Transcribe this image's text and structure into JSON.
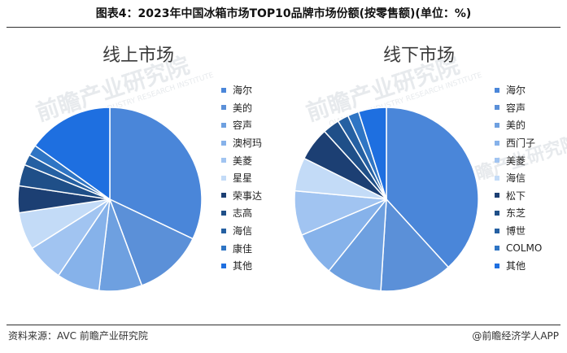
{
  "title": "图表4：2023年中国冰箱市场TOP10品牌市场份额(按零售额)(单位：%)",
  "source": "资料来源：AVC 前瞻产业研究院",
  "credit": "@前瞻经济学人APP",
  "watermark": {
    "main": "前瞻产业研究院",
    "sub": "QIANZHAN INDUSTRY RESEARCH INSTITUTE"
  },
  "chart_data": [
    {
      "type": "pie",
      "title": "线上市场",
      "labels": [
        "海尔",
        "美的",
        "容声",
        "澳柯玛",
        "美菱",
        "星星",
        "荣事达",
        "志高",
        "海信",
        "康佳",
        "其他"
      ],
      "values": [
        34,
        13,
        8,
        8,
        7,
        7,
        5,
        4,
        2,
        2,
        16
      ],
      "colors": [
        "#4a86d9",
        "#5b90d8",
        "#6ea0e0",
        "#86b2ea",
        "#a1c4f1",
        "#c3dbf7",
        "#1c3f73",
        "#1f4f88",
        "#2560a2",
        "#2f75c4",
        "#1e6fe0"
      ]
    },
    {
      "type": "pie",
      "title": "线下市场",
      "labels": [
        "海尔",
        "容声",
        "美的",
        "西门子",
        "美菱",
        "海信",
        "松下",
        "东芝",
        "博世",
        "COLMO",
        "其他"
      ],
      "values": [
        39,
        13,
        10,
        8,
        8,
        6,
        6,
        3,
        2,
        2,
        5
      ],
      "colors": [
        "#4a86d9",
        "#5b90d8",
        "#6ea0e0",
        "#86b2ea",
        "#a1c4f1",
        "#c3dbf7",
        "#1c3f73",
        "#1f4f88",
        "#2560a2",
        "#2f75c4",
        "#1e6fe0"
      ]
    }
  ]
}
